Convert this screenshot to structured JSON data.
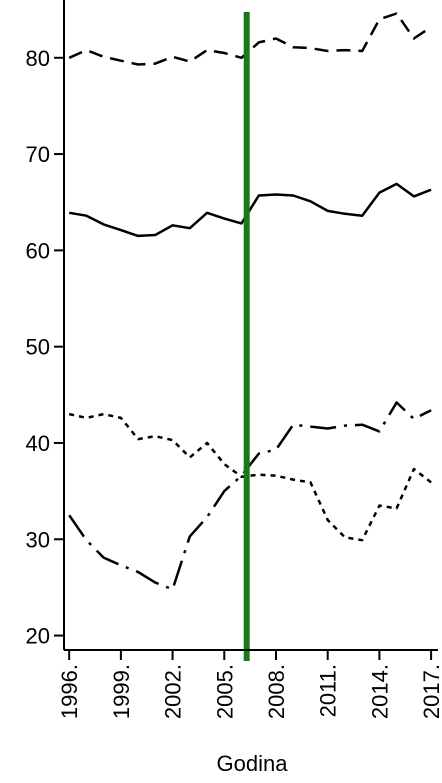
{
  "chart_data": {
    "type": "line",
    "title": "",
    "xlabel": "Godina",
    "ylabel": "",
    "xlim": [
      1995.7,
      2017.4
    ],
    "ylim": [
      18.5,
      86
    ],
    "yticks": [
      20,
      30,
      40,
      50,
      60,
      70,
      80
    ],
    "xticks": [
      1996,
      1999,
      2002,
      2005,
      2008,
      2011,
      2014,
      2017
    ],
    "xtick_labels": [
      "1996.",
      "1999.",
      "2002.",
      "2005.",
      "2008.",
      "2011.",
      "2014.",
      "2017."
    ],
    "grid": false,
    "x": [
      1996,
      1997,
      1998,
      1999,
      2000,
      2001,
      2002,
      2003,
      2004,
      2005,
      2006,
      2007,
      2008,
      2009,
      2010,
      2011,
      2012,
      2013,
      2014,
      2015,
      2016,
      2017
    ],
    "series": [
      {
        "style": "dashed",
        "values": [
          80.0,
          80.8,
          80.1,
          79.7,
          79.3,
          79.4,
          80.1,
          79.6,
          80.8,
          80.5,
          80.0,
          81.6,
          82.0,
          81.1,
          81.0,
          80.7,
          80.8,
          80.7,
          84.0,
          84.6,
          82.0,
          83.2
        ]
      },
      {
        "style": "solid",
        "values": [
          63.9,
          63.6,
          62.7,
          62.1,
          61.5,
          61.6,
          62.6,
          62.3,
          63.9,
          63.3,
          62.8,
          65.7,
          65.8,
          65.7,
          65.1,
          64.1,
          63.8,
          63.6,
          66.0,
          66.9,
          65.6,
          66.3
        ]
      },
      {
        "style": "dotted",
        "values": [
          43.0,
          42.6,
          43.0,
          42.6,
          40.4,
          40.7,
          40.3,
          38.5,
          40.0,
          37.8,
          36.5,
          36.7,
          36.6,
          36.2,
          35.9,
          32.0,
          30.2,
          29.9,
          33.5,
          33.2,
          37.3,
          35.9
        ]
      },
      {
        "style": "longdash-dot",
        "values": [
          32.5,
          29.9,
          28.1,
          27.3,
          26.6,
          25.5,
          24.8,
          30.3,
          32.3,
          35.0,
          36.6,
          38.9,
          39.3,
          41.9,
          41.7,
          41.5,
          41.8,
          41.9,
          41.2,
          44.2,
          42.5,
          43.4
        ]
      }
    ],
    "reference_lines": [
      {
        "orientation": "vertical",
        "x": 2006.3,
        "color": "#1a7a1a"
      }
    ]
  }
}
